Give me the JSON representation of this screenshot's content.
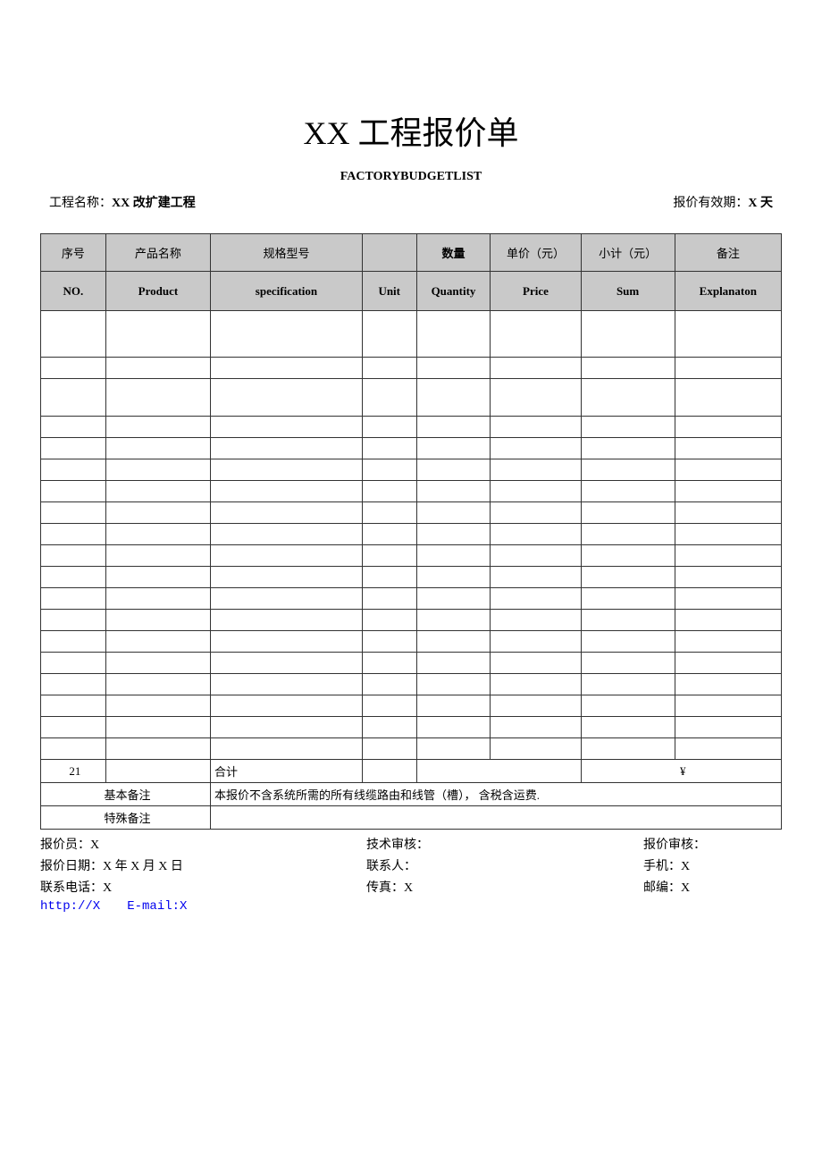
{
  "title": "XX 工程报价单",
  "subtitle": "FACTORYBUDGETLIST",
  "meta": {
    "project_label": "工程名称：",
    "project_value": "XX 改扩建工程",
    "validity_label": "报价有效期：",
    "validity_value": "X 天"
  },
  "columns_cn": [
    "序号",
    "产品名称",
    "规格型号",
    "",
    "数量",
    "单价（元）",
    "小计（元）",
    "备注"
  ],
  "columns_en": [
    "NO.",
    "Product",
    "specification",
    "Unit",
    "Quantity",
    "Price",
    "Sum",
    "Explanaton"
  ],
  "col_widths": [
    "col-no",
    "col-prod",
    "col-spec",
    "col-unit",
    "col-qty",
    "col-price",
    "col-sum",
    "col-exp"
  ],
  "data_row_heights": [
    "tall",
    "",
    "med",
    "",
    "",
    "",
    "",
    "",
    "",
    "",
    "",
    "",
    "",
    "",
    "",
    "",
    "",
    "",
    ""
  ],
  "total_row": {
    "no": "21",
    "label": "合计",
    "sum": "¥"
  },
  "remark1": {
    "label": "基本备注",
    "text": "本报价不含系统所需的所有线缆路由和线管（槽）， 含税含运费."
  },
  "remark2": {
    "label": "特殊备注",
    "text": ""
  },
  "below": [
    [
      "报价员：X",
      "技术审核：",
      "报价审核："
    ],
    [
      "报价日期：X 年 X 月 X 日",
      "联系人：",
      "手机：X"
    ],
    [
      "联系电话：X",
      "传真：X",
      "邮编：X"
    ]
  ],
  "links": {
    "url": "http://X",
    "email": "E-mail:X"
  },
  "colors": {
    "header_bg": "#c9c9c9",
    "border": "#333333",
    "link": "#0000ee"
  }
}
